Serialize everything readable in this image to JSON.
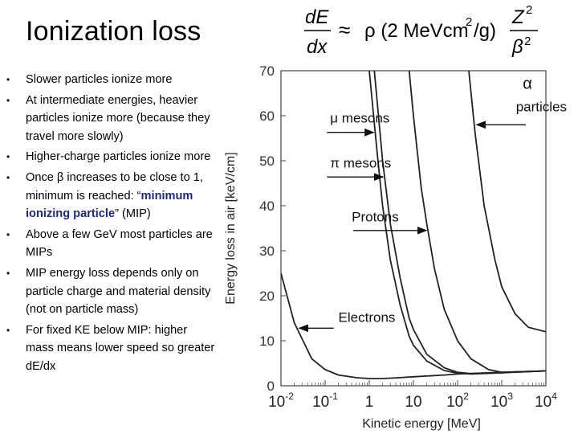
{
  "slide": {
    "title": "Ionization loss",
    "formula": {
      "lhs_num": "dE",
      "lhs_den": "dx",
      "approx": "≈",
      "body": "ρ (2 MeVcm",
      "sup2": "2",
      "body_tail": "/g)",
      "rhs_num": "Z",
      "rhs_num_sup": "2",
      "rhs_den": "β",
      "rhs_den_sup": "2"
    },
    "bullets": [
      {
        "marker": "•",
        "text": "Slower particles ionize more"
      },
      {
        "marker": "•",
        "text": "At intermediate energies, heavier particles ionize more (because they travel more slowly)"
      },
      {
        "marker": "•",
        "text": "Higher-charge particles ionize more"
      },
      {
        "marker": "•",
        "pre": "Once β increases to be close to 1, minimum is reached: “",
        "highlight": "minimum ionizing particle",
        "post": "” (MIP)"
      },
      {
        "marker": "•",
        "text": "Above a few GeV most particles are MIPs"
      },
      {
        "marker": "•",
        "text": "MIP energy loss depends only on particle charge and material density (not on particle mass)"
      },
      {
        "marker": "•",
        "text": "For fixed KE below MIP: higher mass means lower speed so greater dE/dx"
      }
    ]
  },
  "colors": {
    "text": "#000000",
    "highlight": "#1f2a7a",
    "curve": "#222222"
  },
  "chart_data": {
    "type": "line",
    "xscale": "log",
    "xlim": [
      0.01,
      10000
    ],
    "ylim": [
      0,
      70
    ],
    "xlabel": "Kinetic energy [MeV]",
    "ylabel": "Energy loss in air [keV/cm]",
    "x_tick_values": [
      0.01,
      0.1,
      1,
      10,
      100,
      1000,
      10000
    ],
    "x_tick_bases": [
      "10",
      "10",
      "1",
      "10",
      "10",
      "10",
      "10"
    ],
    "x_tick_exps": [
      "-2",
      "-1",
      "",
      "",
      "2",
      "3",
      "4"
    ],
    "y_ticks": [
      0,
      10,
      20,
      30,
      40,
      50,
      60,
      70
    ],
    "y_tick_labels": [
      "0",
      "10",
      "20",
      "30",
      "40",
      "50",
      "60",
      "70"
    ],
    "series": [
      {
        "name": "Electrons",
        "x": [
          0.01,
          0.02,
          0.05,
          0.1,
          0.2,
          0.5,
          1,
          2,
          5,
          10,
          50,
          100,
          1000,
          10000
        ],
        "y": [
          25,
          14,
          6,
          3.6,
          2.4,
          1.8,
          1.6,
          1.6,
          1.8,
          2,
          2.4,
          2.6,
          3,
          3.3
        ]
      },
      {
        "name": "μ mesons",
        "x": [
          1,
          1.5,
          2,
          3,
          5,
          8,
          10,
          20,
          50,
          100,
          200,
          1000,
          10000
        ],
        "y": [
          70,
          52,
          40,
          28,
          18,
          11,
          9,
          5.5,
          3.4,
          2.8,
          2.6,
          2.9,
          3.3
        ]
      },
      {
        "name": "π mesons",
        "x": [
          1.3,
          2,
          3,
          5,
          8,
          10,
          20,
          50,
          100,
          200,
          1000,
          10000
        ],
        "y": [
          70,
          50,
          36,
          24,
          15,
          12.5,
          7,
          4,
          3,
          2.7,
          2.9,
          3.3
        ]
      },
      {
        "name": "Protons",
        "x": [
          8,
          10,
          15,
          20,
          30,
          50,
          100,
          200,
          500,
          1000,
          10000
        ],
        "y": [
          70,
          60,
          44,
          36,
          26,
          17,
          10,
          6,
          3.6,
          3,
          3.3
        ]
      },
      {
        "name": "α particles",
        "x": [
          180,
          250,
          400,
          700,
          1000,
          2000,
          4000,
          10000
        ],
        "y": [
          70,
          56,
          40,
          28,
          22,
          16,
          13,
          12
        ]
      }
    ],
    "annotations": [
      {
        "text": "α",
        "target": "α particles",
        "x": 3000,
        "y": 66
      },
      {
        "text": "particles",
        "target": "α particles",
        "x": 2100,
        "y": 61
      },
      {
        "text": "μ  mesons",
        "target": "μ mesons",
        "x": 0.13,
        "y": 58.5
      },
      {
        "text": "π  mesons",
        "target": "π mesons",
        "x": 0.13,
        "y": 48.5
      },
      {
        "text": "Protons",
        "target": "Protons",
        "x": 0.4,
        "y": 36.5
      },
      {
        "text": "Electrons",
        "target": "Electrons",
        "x": 0.2,
        "y": 14.2
      }
    ]
  }
}
